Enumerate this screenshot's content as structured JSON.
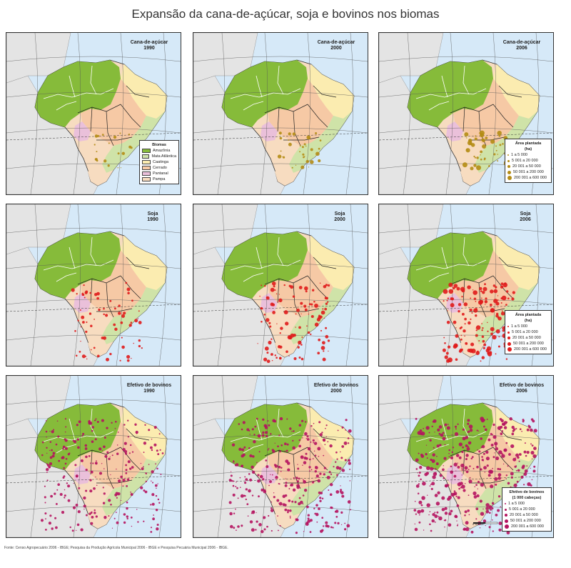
{
  "title": "Expansão da cana-de-açúcar, soja e bovinos nos biomas",
  "colors": {
    "ocean": "#d6e9f8",
    "land_outside": "#e4e4e4",
    "amazonia": "#86bb3a",
    "mata_atlantica": "#cfe3a8",
    "caatinga": "#fbecb0",
    "cerrado": "#f6c9a5",
    "pantanal": "#eac0da",
    "pampa": "#f7dcc0",
    "cane_dot": "#b48c14",
    "soy_dot": "#e01b1b",
    "cattle_dot": "#b5135f"
  },
  "panels": [
    {
      "id": "cana-1",
      "title": "Cana-de-açúcar",
      "year": "1990",
      "theme": "cane",
      "intensity": 1
    },
    {
      "id": "cana-2",
      "title": "Cana-de-açúcar",
      "year": "2000",
      "theme": "cane",
      "intensity": 2
    },
    {
      "id": "cana-3",
      "title": "Cana-de-açúcar",
      "year": "2006",
      "theme": "cane",
      "intensity": 3
    },
    {
      "id": "soja-1",
      "title": "Soja",
      "year": "1990",
      "theme": "soy",
      "intensity": 1
    },
    {
      "id": "soja-2",
      "title": "Soja",
      "year": "2000",
      "theme": "soy",
      "intensity": 2
    },
    {
      "id": "soja-3",
      "title": "Soja",
      "year": "2006",
      "theme": "soy",
      "intensity": 3
    },
    {
      "id": "bovinos-1",
      "title": "Efetivo de bovinos",
      "year": "1990",
      "theme": "cattle",
      "intensity": 1
    },
    {
      "id": "bovinos-2",
      "title": "Efetivo de bovinos",
      "year": "2000",
      "theme": "cattle",
      "intensity": 2
    },
    {
      "id": "bovinos-3",
      "title": "Efetivo de bovinos",
      "year": "2006",
      "theme": "cattle",
      "intensity": 3
    }
  ],
  "legend_biomas": {
    "title": "Biomas",
    "items": [
      {
        "label": "Amazônia",
        "color": "#86bb3a"
      },
      {
        "label": "Mata Atlântica",
        "color": "#cfe3a8"
      },
      {
        "label": "Caatinga",
        "color": "#fbecb0"
      },
      {
        "label": "Cerrado",
        "color": "#f6c9a5"
      },
      {
        "label": "Pantanal",
        "color": "#eac0da"
      },
      {
        "label": "Pampa",
        "color": "#f7dcc0"
      }
    ]
  },
  "legend_cana": {
    "title": "Área plantada",
    "unit": "(ha)",
    "items": [
      "1 a 5 000",
      "5 001 a 20 000",
      "20 001 a 50 000",
      "50 001 a 200 000",
      "200 001 a 600 000"
    ]
  },
  "legend_soja": {
    "title": "Área plantada",
    "unit": "(ha)",
    "items": [
      "1 a 5 000",
      "5 001 a 20 000",
      "20 001 a 50 000",
      "50 001 a 200 000",
      "200 001 a 600 000"
    ]
  },
  "legend_bovinos": {
    "title": "Efetivo de bovinos",
    "unit": "(1 000 cabeças)",
    "items": [
      "1 a 5 000",
      "5 001 a 20 000",
      "20 001 a 50 000",
      "50 001 a 200 000",
      "200 001 a 600 000"
    ]
  },
  "scale_label": "0   500 km",
  "source": "Fonte: Censo Agropecuário 2006 - IBGE; Pesquisa da Produção Agrícola Municipal 2006 - IBGE e Pesquisa Pecuária Municipal 2006 - IBGE."
}
